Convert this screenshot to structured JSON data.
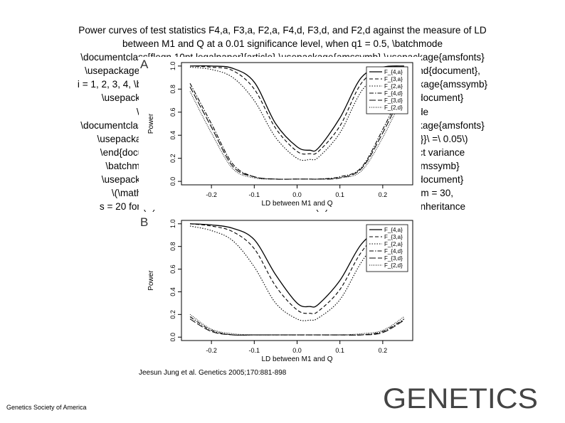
{
  "caption": {
    "lines": [
      "Power curves of test statistics F4,a, F3,a, F2,a, F4,d, F3,d, and F2,d against the measure of LD",
      "between M1 and Q at a 0.01 significance level, when q1 = 0.5, \\batchmode",
      "\\documentclass[fleqn,10pt,legalpaper]{article} \\usepackage{amssymb} \\usepackage{amsfonts}",
      "\\usepackage{amsmath} \\pagestyle{empty} \\begin{document} \\(p_{i}\\ =\\ 0.5\\) \\end{document},",
      "i = 1, 2, 3, 4, \\batchmode \\documentclass[fleqn,10pt,legalpaper]{article} \\usepackage{amssymb}",
      "\\usepackage{amsfonts} \\usepackage{amsmath} \\pagestyle{empty} \\begin{document}",
      "\\(D_{M_{i}M_{j}}\\ =\\ 0\\) \\end{document}, i ≠ j = 1, 2, 3, 4, \\batchmode",
      "\\documentclass[fleqn,10pt,legalpaper]{article} \\usepackage{amssymb} \\usepackage{amsfonts}",
      "\\usepackage{amsmath} \\pagestyle{empty} \\begin{document} \\(D_{Q_{i}M_{j}}\\ =\\ 0.05\\)",
      "\\end{document}, i ≠ j = 1, 2, 3, 4, the proportion of the major polygenic effect variance",
      "\\batchmode \\documentclass[fleqn,10pt,legalpaper]{article} \\usepackage{amssymb}",
      "\\usepackage{amsfonts} \\usepackage{amsmath} \\pagestyle{empty} \\begin{document}",
      "\\(\\mathrm{{\\sigma}}^{2}\\) \\end{document} is 0.1, the sample size n = 40, m = 30,",
      "s = 20 for (A) a dominant mode of inheritance and (B) an additive mode of inheritance"
    ]
  },
  "chart_data": [
    {
      "panel_label": "A",
      "type": "line",
      "xlabel": "LD between M1 and Q",
      "ylabel": "Power",
      "xlim": [
        -0.27,
        0.27
      ],
      "ylim": [
        -0.03,
        1.03
      ],
      "xticks": [
        -0.2,
        -0.1,
        0.0,
        0.1,
        0.2
      ],
      "xtick_labels": [
        "-0.2",
        "-0.1",
        "0.0",
        "0.1",
        "0.2"
      ],
      "yticks": [
        0.0,
        0.2,
        0.4,
        0.6,
        0.8,
        1.0
      ],
      "ytick_labels": [
        "0.0",
        "0.2",
        "0.4",
        "0.6",
        "0.8",
        "1.0"
      ],
      "legend_position": "top-right",
      "x": [
        -0.25,
        -0.2,
        -0.15,
        -0.1,
        -0.05,
        0.0,
        0.03,
        0.05,
        0.1,
        0.15,
        0.2,
        0.25
      ],
      "series": [
        {
          "name": "F_{4,a}",
          "dash": "solid",
          "values": [
            1.0,
            1.0,
            0.98,
            0.86,
            0.5,
            0.3,
            0.27,
            0.29,
            0.55,
            0.9,
            0.99,
            1.0
          ]
        },
        {
          "name": "F_{3,a}",
          "dash": "dash",
          "values": [
            1.0,
            0.99,
            0.96,
            0.8,
            0.46,
            0.26,
            0.24,
            0.26,
            0.48,
            0.85,
            0.98,
            1.0
          ]
        },
        {
          "name": "F_{2,a}",
          "dash": "dot",
          "values": [
            0.99,
            0.97,
            0.9,
            0.7,
            0.38,
            0.2,
            0.19,
            0.21,
            0.42,
            0.78,
            0.95,
            0.99
          ]
        },
        {
          "name": "F_{4,d}",
          "dash": "dashdot",
          "values": [
            0.85,
            0.5,
            0.15,
            0.04,
            0.02,
            0.02,
            0.02,
            0.02,
            0.04,
            0.12,
            0.45,
            0.83
          ]
        },
        {
          "name": "F_{3,d}",
          "dash": "longdash",
          "values": [
            0.82,
            0.47,
            0.13,
            0.04,
            0.02,
            0.02,
            0.02,
            0.02,
            0.03,
            0.11,
            0.42,
            0.8
          ]
        },
        {
          "name": "F_{2,d}",
          "dash": "fine",
          "values": [
            0.78,
            0.42,
            0.11,
            0.03,
            0.02,
            0.02,
            0.02,
            0.02,
            0.03,
            0.09,
            0.38,
            0.76
          ]
        }
      ]
    },
    {
      "panel_label": "B",
      "type": "line",
      "xlabel": "LD between M1 and Q",
      "ylabel": "Power",
      "xlim": [
        -0.27,
        0.27
      ],
      "ylim": [
        -0.03,
        1.03
      ],
      "xticks": [
        -0.2,
        -0.1,
        0.0,
        0.1,
        0.2
      ],
      "xtick_labels": [
        "-0.2",
        "-0.1",
        "0.0",
        "0.1",
        "0.2"
      ],
      "yticks": [
        0.0,
        0.2,
        0.4,
        0.6,
        0.8,
        1.0
      ],
      "ytick_labels": [
        "0.0",
        "0.2",
        "0.4",
        "0.6",
        "0.8",
        "1.0"
      ],
      "legend_position": "top-right",
      "x": [
        -0.25,
        -0.2,
        -0.15,
        -0.1,
        -0.05,
        0.0,
        0.03,
        0.05,
        0.1,
        0.15,
        0.2,
        0.25
      ],
      "series": [
        {
          "name": "F_{4,a}",
          "dash": "solid",
          "values": [
            1.0,
            0.99,
            0.96,
            0.86,
            0.55,
            0.3,
            0.27,
            0.29,
            0.5,
            0.82,
            0.96,
            0.99
          ]
        },
        {
          "name": "F_{3,a}",
          "dash": "dash",
          "values": [
            1.0,
            0.98,
            0.93,
            0.78,
            0.45,
            0.24,
            0.21,
            0.23,
            0.42,
            0.75,
            0.94,
            0.98
          ]
        },
        {
          "name": "F_{2,a}",
          "dash": "dot",
          "values": [
            0.98,
            0.94,
            0.85,
            0.62,
            0.3,
            0.16,
            0.15,
            0.17,
            0.33,
            0.66,
            0.9,
            0.97
          ]
        },
        {
          "name": "F_{4,d}",
          "dash": "dashdot",
          "values": [
            0.18,
            0.06,
            0.02,
            0.02,
            0.02,
            0.02,
            0.02,
            0.02,
            0.02,
            0.02,
            0.05,
            0.16
          ]
        },
        {
          "name": "F_{3,d}",
          "dash": "longdash",
          "values": [
            0.16,
            0.05,
            0.02,
            0.02,
            0.02,
            0.02,
            0.02,
            0.02,
            0.02,
            0.02,
            0.04,
            0.15
          ]
        },
        {
          "name": "F_{2,d}",
          "dash": "fine",
          "values": [
            0.2,
            0.07,
            0.03,
            0.02,
            0.02,
            0.02,
            0.02,
            0.02,
            0.02,
            0.03,
            0.06,
            0.18
          ]
        }
      ]
    }
  ],
  "citation": "Jeesun Jung et al. Genetics 2005;170:881-898",
  "footer": {
    "society": "Genetics Society of America",
    "logo_text": "GENETICS",
    "logo_color": "#444444"
  }
}
